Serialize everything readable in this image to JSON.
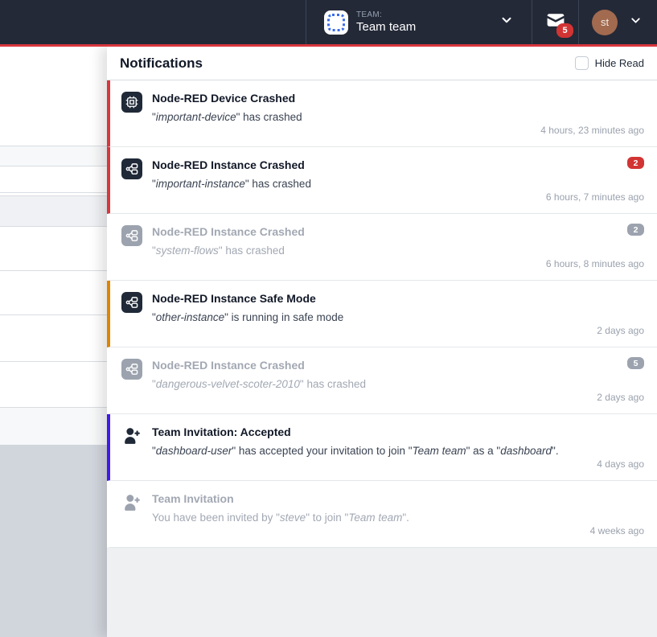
{
  "navbar": {
    "team_label": "TEAM:",
    "team_name": "Team team",
    "mail_badge": "5",
    "avatar_initials": "st"
  },
  "panel": {
    "title": "Notifications",
    "hide_read_label": "Hide Read",
    "hide_read_checked": false,
    "items": [
      {
        "title": "Node-RED Device Crashed",
        "segments": [
          {
            "t": "\"",
            "i": false
          },
          {
            "t": "important-device",
            "i": true
          },
          {
            "t": "\" has crashed",
            "i": false
          }
        ],
        "time": "4 hours, 23 minutes ago",
        "read": false,
        "accent": "#d9363e",
        "icon": "device-icon",
        "badge": null
      },
      {
        "title": "Node-RED Instance Crashed",
        "segments": [
          {
            "t": "\"",
            "i": false
          },
          {
            "t": "important-instance",
            "i": true
          },
          {
            "t": "\" has crashed",
            "i": false
          }
        ],
        "time": "6 hours, 7 minutes ago",
        "read": false,
        "accent": "#d9363e",
        "icon": "instance-icon",
        "badge": {
          "text": "2",
          "color": "#d23434"
        }
      },
      {
        "title": "Node-RED Instance Crashed",
        "segments": [
          {
            "t": "\"",
            "i": false
          },
          {
            "t": "system-flows",
            "i": true
          },
          {
            "t": "\" has crashed",
            "i": false
          }
        ],
        "time": "6 hours, 8 minutes ago",
        "read": true,
        "accent": null,
        "icon": "instance-icon",
        "badge": {
          "text": "2",
          "color": "#9ca3af"
        }
      },
      {
        "title": "Node-RED Instance Safe Mode",
        "segments": [
          {
            "t": "\"",
            "i": false
          },
          {
            "t": "other-instance",
            "i": true
          },
          {
            "t": "\" is running in safe mode",
            "i": false
          }
        ],
        "time": "2 days ago",
        "read": false,
        "accent": "#dd8500",
        "icon": "instance-icon",
        "badge": null
      },
      {
        "title": "Node-RED Instance Crashed",
        "segments": [
          {
            "t": "\"",
            "i": false
          },
          {
            "t": "dangerous-velvet-scoter-2010",
            "i": true
          },
          {
            "t": "\" has crashed",
            "i": false
          }
        ],
        "time": "2 days ago",
        "read": true,
        "accent": null,
        "icon": "instance-icon",
        "badge": {
          "text": "5",
          "color": "#9ca3af"
        }
      },
      {
        "title": "Team Invitation: Accepted",
        "segments": [
          {
            "t": "\"",
            "i": false
          },
          {
            "t": "dashboard-user",
            "i": true
          },
          {
            "t": "\" has accepted your invitation to join \"",
            "i": false
          },
          {
            "t": "Team team",
            "i": true
          },
          {
            "t": "\" as a \"",
            "i": false
          },
          {
            "t": "dashboard",
            "i": true
          },
          {
            "t": "\".",
            "i": false
          }
        ],
        "time": "4 days ago",
        "read": false,
        "accent": "#4018f0",
        "icon": "user-add-icon",
        "badge": null
      },
      {
        "title": "Team Invitation",
        "segments": [
          {
            "t": "You have been invited by \"",
            "i": false
          },
          {
            "t": "steve",
            "i": true
          },
          {
            "t": "\" to join \"",
            "i": false
          },
          {
            "t": "Team team",
            "i": true
          },
          {
            "t": "\".",
            "i": false
          }
        ],
        "time": "4 weeks ago",
        "read": true,
        "accent": null,
        "icon": "user-add-icon",
        "badge": null
      }
    ]
  },
  "colors": {
    "navbar_bg": "#232937",
    "brand_red_line": "#d9363e",
    "unread_red": "#d9363e",
    "unread_orange": "#dd8500",
    "unread_indigo": "#4018f0",
    "badge_red": "#d23434",
    "badge_gray": "#9ca3af",
    "read_gray": "#9ca3af",
    "panel_filler": "#eef0f2"
  }
}
